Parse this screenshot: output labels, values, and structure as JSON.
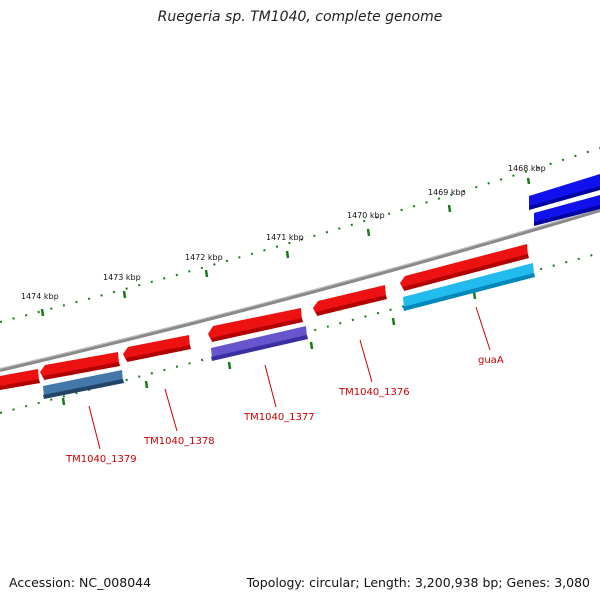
{
  "title": "Ruegeria sp. TM1040, complete genome",
  "accession": "Accession: NC_008044",
  "summary": "Topology: circular; Length: 3,200,938 bp; Genes: 3,080",
  "scale_labels": [
    "1468 kbp",
    "1469 kbp",
    "1470 kbp",
    "1471 kbp",
    "1472 kbp",
    "1473 kbp",
    "1474 kbp"
  ],
  "gene_labels": [
    "guaA",
    "TM1040_1376",
    "TM1040_1377",
    "TM1040_1378",
    "TM1040_1379"
  ],
  "colors": {
    "backbone": "#8a8a8a",
    "gene_red": "#ee1111",
    "gene_blue": "#1111ee",
    "gene_cyan": "#22bbee",
    "gene_purple": "#6655cc",
    "gene_steel": "#4477aa",
    "ticks": "#1a7a1a",
    "label": "#cc0000"
  }
}
